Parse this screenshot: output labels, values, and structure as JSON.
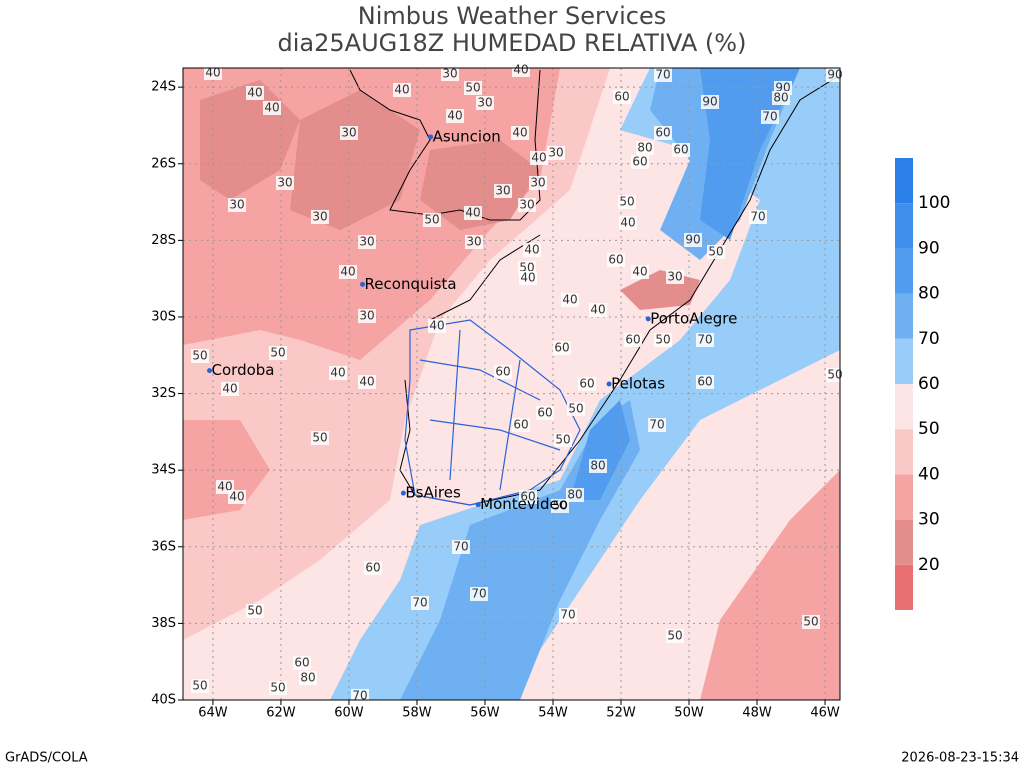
{
  "header": {
    "title": "Nimbus Weather Services",
    "subtitle": "dia25AUG18Z HUMEDAD RELATIVA (%)"
  },
  "map": {
    "lon_range": [
      -64.88,
      -45.56
    ],
    "lat_range": [
      -23.5,
      -40
    ],
    "lon_ticks": [
      {
        "value": -64,
        "label": "64W"
      },
      {
        "value": -62,
        "label": "62W"
      },
      {
        "value": -60,
        "label": "60W"
      },
      {
        "value": -58,
        "label": "58W"
      },
      {
        "value": -56,
        "label": "56W"
      },
      {
        "value": -54,
        "label": "54W"
      },
      {
        "value": -52,
        "label": "52W"
      },
      {
        "value": -50,
        "label": "50W"
      },
      {
        "value": -48,
        "label": "48W"
      },
      {
        "value": -46,
        "label": "46W"
      }
    ],
    "lat_ticks": [
      {
        "value": -24,
        "label": "24S"
      },
      {
        "value": -26,
        "label": "26S"
      },
      {
        "value": -28,
        "label": "28S"
      },
      {
        "value": -30,
        "label": "30S"
      },
      {
        "value": -32,
        "label": "32S"
      },
      {
        "value": -34,
        "label": "34S"
      },
      {
        "value": -36,
        "label": "36S"
      },
      {
        "value": -38,
        "label": "38S"
      },
      {
        "value": -40,
        "label": "40S"
      }
    ],
    "cities": [
      {
        "name": "Asuncion",
        "lon": -57.6,
        "lat": -25.3
      },
      {
        "name": "Reconquista",
        "lon": -59.6,
        "lat": -29.15
      },
      {
        "name": "Cordoba",
        "lon": -64.1,
        "lat": -31.4
      },
      {
        "name": "BsAires",
        "lon": -58.4,
        "lat": -34.6
      },
      {
        "name": "Montevideo",
        "lon": -56.2,
        "lat": -34.9
      },
      {
        "name": "Pelotas",
        "lon": -52.35,
        "lat": -31.75
      },
      {
        "name": "PortoAlegre",
        "lon": -51.2,
        "lat": -30.05
      }
    ],
    "contour_labels": [
      40,
      40,
      40,
      30,
      30,
      30,
      30,
      30,
      40,
      30,
      50,
      40,
      40,
      40,
      50,
      40,
      40,
      50,
      50,
      30,
      50,
      40,
      30,
      40,
      40,
      40,
      40,
      30,
      30,
      30,
      30,
      40,
      50,
      30,
      40,
      50,
      40,
      40,
      40,
      60,
      40,
      30,
      40,
      60,
      60,
      60,
      60,
      50,
      50,
      60,
      60,
      50,
      70,
      60,
      70,
      80,
      80,
      60,
      50,
      70,
      60,
      70,
      70,
      70,
      50,
      50,
      50,
      70,
      50,
      90,
      40,
      50,
      70,
      60,
      90,
      90,
      80,
      70,
      60,
      80,
      60,
      60,
      90,
      60,
      50,
      70,
      80,
      50
    ]
  },
  "colorbar": {
    "levels": [
      20,
      30,
      40,
      50,
      60,
      70,
      80,
      90,
      100
    ],
    "colors": [
      "#e87070",
      "#e48d8d",
      "#f5a3a3",
      "#fbc8c8",
      "#fde5e5",
      "#97cdf8",
      "#6fb0f3",
      "#519cef",
      "#3f8eec",
      "#2b7fe8"
    ]
  },
  "footer": {
    "left": "GrADS/COLA",
    "right": "2026-08-23-15:34"
  }
}
